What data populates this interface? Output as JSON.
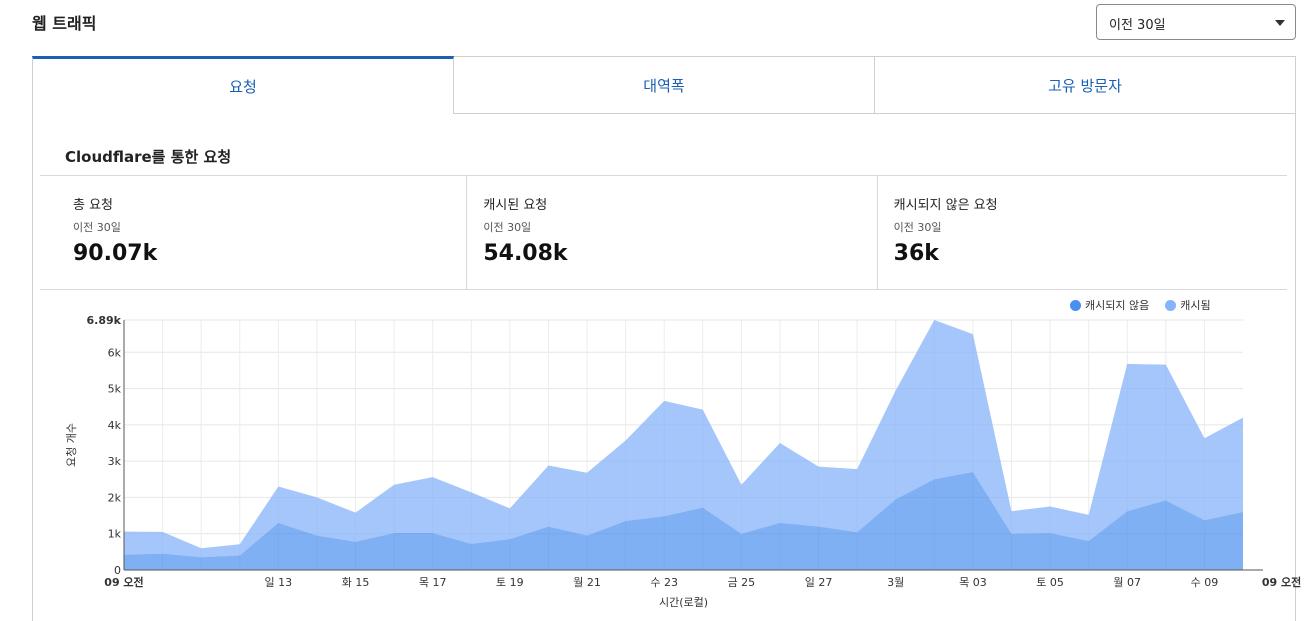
{
  "header": {
    "title": "웹 트래픽"
  },
  "period_select": {
    "value": "이전 30일"
  },
  "tabs": [
    {
      "label": "요청",
      "active": true
    },
    {
      "label": "대역폭",
      "active": false
    },
    {
      "label": "고유 방문자",
      "active": false
    }
  ],
  "section": {
    "title": "Cloudflare를 통한 요청"
  },
  "stats": [
    {
      "label": "총 요청",
      "period": "이전 30일",
      "value": "90.07k"
    },
    {
      "label": "캐시된 요청",
      "period": "이전 30일",
      "value": "54.08k"
    },
    {
      "label": "캐시되지 않은 요청",
      "period": "이전 30일",
      "value": "36k"
    }
  ],
  "colors": {
    "accent": "#1a5fb4",
    "uncached": "#4a8ff0",
    "cached": "#86b3f9"
  },
  "chart_data": {
    "type": "area",
    "stacked": true,
    "xlabel": "시간(로컬)",
    "ylabel": "요청 개수",
    "ylim": [
      0,
      6890
    ],
    "y_ticks": [
      {
        "value": 0,
        "label": "0"
      },
      {
        "value": 1000,
        "label": "1k"
      },
      {
        "value": 2000,
        "label": "2k"
      },
      {
        "value": 3000,
        "label": "3k"
      },
      {
        "value": 4000,
        "label": "4k"
      },
      {
        "value": 5000,
        "label": "5k"
      },
      {
        "value": 6000,
        "label": "6k"
      },
      {
        "value": 6890,
        "label": "6.89k"
      }
    ],
    "x_ticks": [
      {
        "index": 0,
        "label": "09 오전",
        "bold": true
      },
      {
        "index": 4,
        "label": "일 13"
      },
      {
        "index": 6,
        "label": "화 15"
      },
      {
        "index": 8,
        "label": "목 17"
      },
      {
        "index": 10,
        "label": "토 19"
      },
      {
        "index": 12,
        "label": "월 21"
      },
      {
        "index": 14,
        "label": "수 23"
      },
      {
        "index": 16,
        "label": "금 25"
      },
      {
        "index": 18,
        "label": "일 27"
      },
      {
        "index": 20,
        "label": "3월"
      },
      {
        "index": 22,
        "label": "목 03"
      },
      {
        "index": 24,
        "label": "토 05"
      },
      {
        "index": 26,
        "label": "월 07"
      },
      {
        "index": 28,
        "label": "수 09"
      },
      {
        "index": 30,
        "label": "09 오전",
        "bold": true
      }
    ],
    "grid": true,
    "legend_position": "top-right",
    "series": [
      {
        "name": "캐시되지 않음",
        "color": "#4a8ff0",
        "values": [
          420,
          450,
          350,
          400,
          1300,
          950,
          780,
          1020,
          1020,
          720,
          850,
          1200,
          950,
          1350,
          1480,
          1720,
          1000,
          1300,
          1200,
          1040,
          1950,
          2500,
          2700,
          1000,
          1020,
          800,
          1620,
          1920,
          1370,
          1600
        ]
      },
      {
        "name": "캐시됨",
        "color": "#86b3f9",
        "values": [
          640,
          600,
          250,
          310,
          1000,
          1050,
          800,
          1330,
          1540,
          1420,
          850,
          1680,
          1730,
          2220,
          3180,
          2700,
          1350,
          2200,
          1650,
          1740,
          3000,
          4390,
          3800,
          620,
          730,
          720,
          4060,
          3740,
          2260,
          2600
        ]
      }
    ]
  }
}
